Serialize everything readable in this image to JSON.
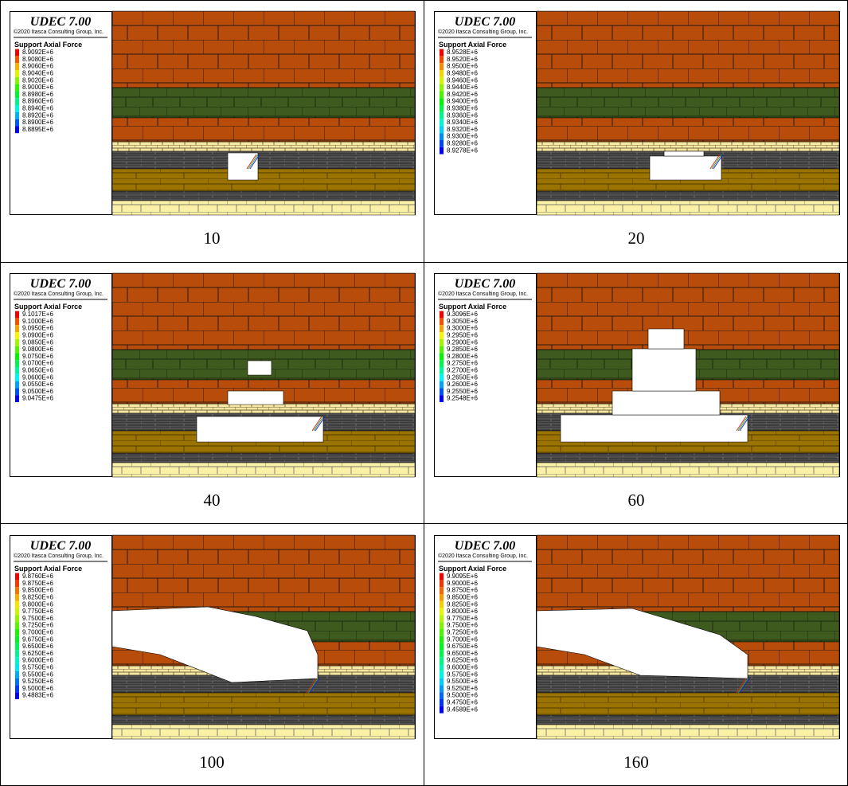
{
  "panels": [
    {
      "title": "UDEC 7.00",
      "copyright": "©2020 Itasca Consulting Group, Inc.",
      "legend_title": "Support Axial Force",
      "legend": [
        "8.9092E+6",
        "8.9080E+6",
        "8.9060E+6",
        "8.9040E+6",
        "8.9020E+6",
        "8.9000E+6",
        "8.8980E+6",
        "8.8960E+6",
        "8.8940E+6",
        "8.8920E+6",
        "8.8900E+6",
        "8.8895E+6"
      ],
      "caption": "10"
    },
    {
      "title": "UDEC 7.00",
      "copyright": "©2020 Itasca Consulting Group, Inc.",
      "legend_title": "Support Axial Force",
      "legend": [
        "8.9528E+6",
        "8.9520E+6",
        "8.9500E+6",
        "8.9480E+6",
        "8.9460E+6",
        "8.9440E+6",
        "8.9420E+6",
        "8.9400E+6",
        "8.9380E+6",
        "8.9360E+6",
        "8.9340E+6",
        "8.9320E+6",
        "8.9300E+6",
        "8.9280E+6",
        "8.9278E+6"
      ],
      "caption": "20"
    },
    {
      "title": "UDEC 7.00",
      "copyright": "©2020 Itasca Consulting Group, Inc.",
      "legend_title": "Support Axial Force",
      "legend": [
        "9.1017E+6",
        "9.1000E+6",
        "9.0950E+6",
        "9.0900E+6",
        "9.0850E+6",
        "9.0800E+6",
        "9.0750E+6",
        "9.0700E+6",
        "9.0650E+6",
        "9.0600E+6",
        "9.0550E+6",
        "9.0500E+6",
        "9.0475E+6"
      ],
      "caption": "40"
    },
    {
      "title": "UDEC 7.00",
      "copyright": "©2020 Itasca Consulting Group, Inc.",
      "legend_title": "Support Axial Force",
      "legend": [
        "9.3096E+6",
        "9.3050E+6",
        "9.3000E+6",
        "9.2950E+6",
        "9.2900E+6",
        "9.2850E+6",
        "9.2800E+6",
        "9.2750E+6",
        "9.2700E+6",
        "9.2650E+6",
        "9.2600E+6",
        "9.2550E+6",
        "9.2548E+6"
      ],
      "caption": "60"
    },
    {
      "title": "UDEC 7.00",
      "copyright": "©2020 Itasca Consulting Group, Inc.",
      "legend_title": "Support Axial Force",
      "legend": [
        "9.8760E+6",
        "9.8750E+6",
        "9.8500E+6",
        "9.8250E+6",
        "9.8000E+6",
        "9.7750E+6",
        "9.7500E+6",
        "9.7250E+6",
        "9.7000E+6",
        "9.6750E+6",
        "9.6500E+6",
        "9.6250E+6",
        "9.6000E+6",
        "9.5750E+6",
        "9.5500E+6",
        "9.5250E+6",
        "9.5000E+6",
        "9.4883E+6"
      ],
      "caption": "100"
    },
    {
      "title": "UDEC 7.00",
      "copyright": "©2020 Itasca Consulting Group, Inc.",
      "legend_title": "Support Axial Force",
      "legend": [
        "9.9095E+6",
        "9.9000E+6",
        "9.8750E+6",
        "9.8500E+6",
        "9.8250E+6",
        "9.8000E+6",
        "9.7750E+6",
        "9.7500E+6",
        "9.7250E+6",
        "9.7000E+6",
        "9.6750E+6",
        "9.6500E+6",
        "9.6250E+6",
        "9.6000E+6",
        "9.5750E+6",
        "9.5500E+6",
        "9.5250E+6",
        "9.5000E+6",
        "9.4750E+6",
        "9.4589E+6"
      ],
      "caption": "160"
    }
  ]
}
